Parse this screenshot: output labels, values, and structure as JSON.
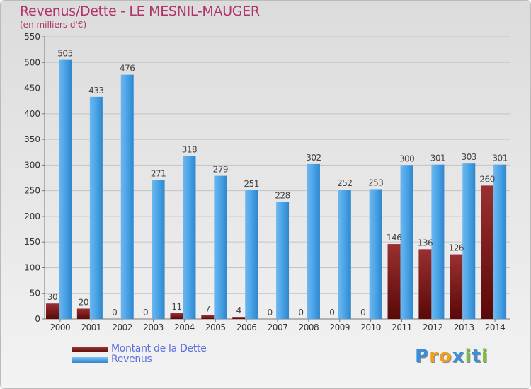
{
  "chart_data": {
    "type": "bar",
    "title": "Revenus/Dette - LE MESNIL-MAUGER",
    "subtitle": "(en milliers d'€)",
    "categories": [
      "2000",
      "2001",
      "2002",
      "2003",
      "2004",
      "2005",
      "2006",
      "2007",
      "2008",
      "2009",
      "2010",
      "2011",
      "2012",
      "2013",
      "2014"
    ],
    "series": [
      {
        "name": "Montant de la Dette",
        "color": "#7a1a1a",
        "values": [
          30,
          20,
          0,
          0,
          11,
          7,
          4,
          0,
          0,
          0,
          0,
          146,
          136,
          126,
          260
        ]
      },
      {
        "name": "Revenus",
        "color": "#4aa3e6",
        "values": [
          505,
          433,
          476,
          271,
          318,
          279,
          251,
          228,
          302,
          252,
          253,
          300,
          301,
          303,
          301
        ]
      }
    ],
    "ylim": [
      0,
      550
    ],
    "yticks": [
      0,
      50,
      100,
      150,
      200,
      250,
      300,
      350,
      400,
      450,
      500,
      550
    ],
    "grid": true,
    "legend_position": "bottom-left"
  },
  "legend": {
    "items": [
      {
        "label": "Montant de la Dette",
        "color": "#6b0f0f"
      },
      {
        "label": "Revenus",
        "color": "#4aa3e6"
      }
    ]
  },
  "logo": {
    "letters": [
      "P",
      "r",
      "o",
      "x",
      "i",
      "t",
      "i"
    ],
    "colors": [
      "#3a8fd8",
      "#f0a020",
      "#f0a020",
      "#3a8fd8",
      "#7dbf3a",
      "#3a8fd8",
      "#7dbf3a"
    ]
  }
}
